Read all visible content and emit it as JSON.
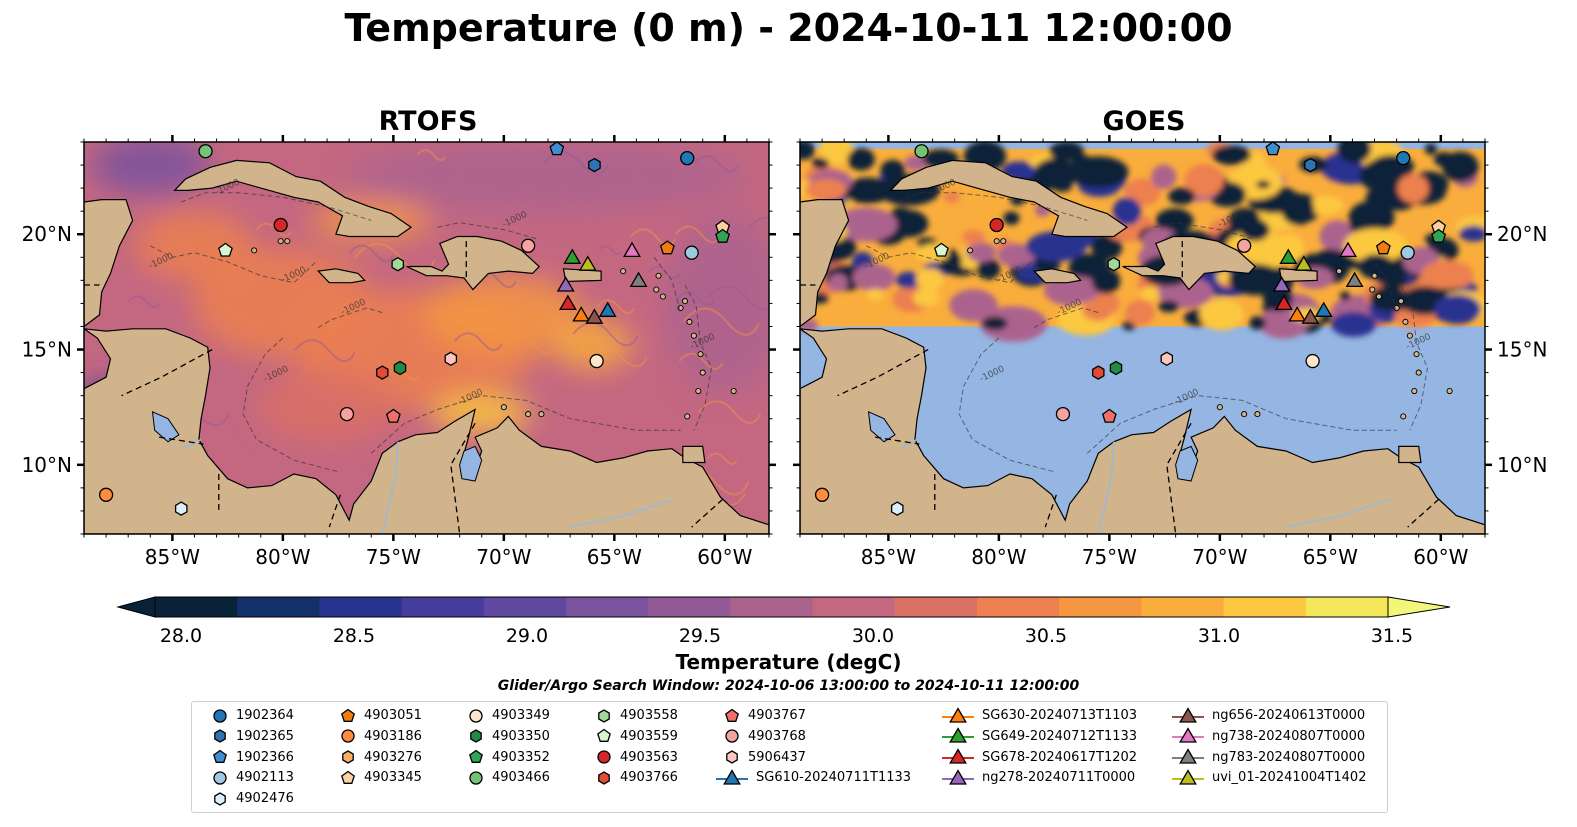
{
  "title": "Temperature (0 m) - 2024-10-11 12:00:00",
  "panels": [
    {
      "title": "RTOFS",
      "mode": "model"
    },
    {
      "title": "GOES",
      "mode": "satellite"
    }
  ],
  "map": {
    "lon_ticks": [
      -85,
      -80,
      -75,
      -70,
      -65,
      -60
    ],
    "lon_labels": [
      "85°W",
      "80°W",
      "75°W",
      "70°W",
      "65°W",
      "60°W"
    ],
    "lat_ticks": [
      10,
      15,
      20
    ],
    "lat_labels": [
      "10°N",
      "15°N",
      "20°N"
    ],
    "lon_range": [
      -89,
      -58
    ],
    "lat_range": [
      7,
      24
    ],
    "isobath_label": "-1000"
  },
  "colorbar": {
    "label": "Temperature (degC)",
    "min": 28.0,
    "max": 31.5,
    "ticks": [
      "28.0",
      "28.5",
      "29.0",
      "29.5",
      "30.0",
      "30.5",
      "31.0",
      "31.5"
    ],
    "colors": [
      "#0a2238",
      "#14306a",
      "#2a3290",
      "#453c9c",
      "#5e48a0",
      "#7a529e",
      "#935a98",
      "#ab638e",
      "#c46882",
      "#db7064",
      "#ec8050",
      "#f49642",
      "#f9ad3c",
      "#fcc840",
      "#f5e75a"
    ],
    "extend_low": "#0a2238",
    "extend_high": "#f2f77a"
  },
  "land_color": "#d2b48c",
  "ocean_fill_color": "#95b5e2",
  "search_window": "Glider/Argo Search Window: 2024-10-06 13:00:00 to 2024-10-11 12:00:00",
  "legend": {
    "columns": [
      [
        {
          "label": "1902364",
          "shape": "circle",
          "color": "#1f77b4"
        },
        {
          "label": "1902365",
          "shape": "hexagon",
          "color": "#2f74b0"
        },
        {
          "label": "1902366",
          "shape": "pentagon",
          "color": "#3f8fd0"
        },
        {
          "label": "4902113",
          "shape": "circle",
          "color": "#9ecae1"
        },
        {
          "label": "4902476",
          "shape": "hexagon",
          "color": "#dbeefa"
        }
      ],
      [
        {
          "label": "4903051",
          "shape": "pentagon",
          "color": "#f07d12"
        },
        {
          "label": "4903186",
          "shape": "circle",
          "color": "#fd8d3c"
        },
        {
          "label": "4903276",
          "shape": "hexagon",
          "color": "#fdae6b"
        },
        {
          "label": "4903345",
          "shape": "pentagon",
          "color": "#fdd0a2"
        }
      ],
      [
        {
          "label": "4903349",
          "shape": "circle",
          "color": "#fee6ce"
        },
        {
          "label": "4903350",
          "shape": "hexagon",
          "color": "#238b45"
        },
        {
          "label": "4903352",
          "shape": "pentagon",
          "color": "#31a354"
        },
        {
          "label": "4903466",
          "shape": "circle",
          "color": "#74c476"
        }
      ],
      [
        {
          "label": "4903558",
          "shape": "hexagon",
          "color": "#a1d99b"
        },
        {
          "label": "4903559",
          "shape": "pentagon",
          "color": "#d8f5d0"
        },
        {
          "label": "4903563",
          "shape": "circle",
          "color": "#d62728"
        },
        {
          "label": "4903766",
          "shape": "hexagon",
          "color": "#e34a33"
        }
      ],
      [
        {
          "label": "4903767",
          "shape": "pentagon",
          "color": "#ef6f6a"
        },
        {
          "label": "4903768",
          "shape": "circle",
          "color": "#f4a3a0"
        },
        {
          "label": "5906437",
          "shape": "hexagon",
          "color": "#fcc5c0"
        },
        {
          "label": "SG610-20240711T1133",
          "shape": "triangle-line",
          "color": "#1f77b4"
        }
      ],
      [
        {
          "label": "SG630-20240713T1103",
          "shape": "triangle-line",
          "color": "#ff7f0e"
        },
        {
          "label": "SG649-20240712T1133",
          "shape": "triangle-line",
          "color": "#2ca02c"
        },
        {
          "label": "SG678-20240617T1202",
          "shape": "triangle-line",
          "color": "#d62728"
        },
        {
          "label": "ng278-20240711T0000",
          "shape": "triangle-line",
          "color": "#9467bd"
        }
      ],
      [
        {
          "label": "ng656-20240613T0000",
          "shape": "triangle-line",
          "color": "#8c564b"
        },
        {
          "label": "ng738-20240807T0000",
          "shape": "triangle-line",
          "color": "#e377c2"
        },
        {
          "label": "ng783-20240807T0000",
          "shape": "triangle-line",
          "color": "#7f7f7f"
        },
        {
          "label": "uvi_01-20241004T1402",
          "shape": "triangle-line",
          "color": "#bcbd22"
        }
      ]
    ]
  },
  "observations": [
    {
      "id": "4903466",
      "shape": "circle",
      "color": "#74c476",
      "lon": -83.5,
      "lat": 23.6
    },
    {
      "id": "1902366",
      "shape": "pentagon",
      "color": "#3f8fd0",
      "lon": -67.6,
      "lat": 23.7
    },
    {
      "id": "1902365",
      "shape": "hexagon",
      "color": "#2f74b0",
      "lon": -65.9,
      "lat": 23.0
    },
    {
      "id": "1902364",
      "shape": "circle",
      "color": "#1f77b4",
      "lon": -61.7,
      "lat": 23.3
    },
    {
      "id": "4903563",
      "shape": "circle",
      "color": "#d62728",
      "lon": -80.1,
      "lat": 20.4
    },
    {
      "id": "4903559",
      "shape": "pentagon",
      "color": "#d8f5d0",
      "lon": -82.6,
      "lat": 19.3
    },
    {
      "id": "4903558",
      "shape": "hexagon",
      "color": "#a1d99b",
      "lon": -74.8,
      "lat": 18.7
    },
    {
      "id": "4903768",
      "shape": "circle",
      "color": "#f4a3a0",
      "lon": -68.9,
      "lat": 19.5
    },
    {
      "id": "4903051",
      "shape": "pentagon",
      "color": "#f07d12",
      "lon": -62.6,
      "lat": 19.4
    },
    {
      "id": "4902113",
      "shape": "circle",
      "color": "#9ecae1",
      "lon": -61.5,
      "lat": 19.2
    },
    {
      "id": "4903345",
      "shape": "pentagon",
      "color": "#fdd0a2",
      "lon": -60.1,
      "lat": 20.3
    },
    {
      "id": "4903352",
      "shape": "pentagon",
      "color": "#31a354",
      "lon": -60.1,
      "lat": 19.9
    },
    {
      "id": "5906437",
      "shape": "hexagon",
      "color": "#fcc5c0",
      "lon": -72.4,
      "lat": 14.6
    },
    {
      "id": "4903349",
      "shape": "circle",
      "color": "#fee6ce",
      "lon": -65.8,
      "lat": 14.5
    },
    {
      "id": "4903766",
      "shape": "hexagon",
      "color": "#e34a33",
      "lon": -75.5,
      "lat": 14.0
    },
    {
      "id": "4903350",
      "shape": "hexagon",
      "color": "#238b45",
      "lon": -74.7,
      "lat": 14.2
    },
    {
      "id": "4903767",
      "shape": "pentagon",
      "color": "#ef6f6a",
      "lon": -75.0,
      "lat": 12.1
    },
    {
      "id": "4903768b",
      "shape": "circle",
      "color": "#f4a3a0",
      "lon": -77.1,
      "lat": 12.2
    },
    {
      "id": "4903186",
      "shape": "circle",
      "color": "#fd8d3c",
      "lon": -88.0,
      "lat": 8.7
    },
    {
      "id": "4902476",
      "shape": "hexagon",
      "color": "#dbeefa",
      "lon": -84.6,
      "lat": 8.1
    },
    {
      "id": "SG649-20240712T1133",
      "shape": "triangle",
      "color": "#2ca02c",
      "lon": -66.9,
      "lat": 19.0
    },
    {
      "id": "uvi_01-20241004T1402",
      "shape": "triangle",
      "color": "#bcbd22",
      "lon": -66.2,
      "lat": 18.7
    },
    {
      "id": "ng738-20240807T0000",
      "shape": "triangle",
      "color": "#e377c2",
      "lon": -64.2,
      "lat": 19.3
    },
    {
      "id": "ng278-20240711T0000",
      "shape": "triangle",
      "color": "#9467bd",
      "lon": -67.2,
      "lat": 17.8
    },
    {
      "id": "ng783-20240807T0000",
      "shape": "triangle",
      "color": "#7f7f7f",
      "lon": -63.9,
      "lat": 18.0
    },
    {
      "id": "SG678-20240617T1202",
      "shape": "triangle",
      "color": "#d62728",
      "lon": -67.1,
      "lat": 17.0
    },
    {
      "id": "SG630-20240713T1103",
      "shape": "triangle",
      "color": "#ff7f0e",
      "lon": -66.5,
      "lat": 16.5
    },
    {
      "id": "ng656-20240613T0000",
      "shape": "triangle",
      "color": "#8c564b",
      "lon": -65.9,
      "lat": 16.4
    },
    {
      "id": "SG610-20240711T1133",
      "shape": "triangle",
      "color": "#1f77b4",
      "lon": -65.3,
      "lat": 16.7
    }
  ]
}
